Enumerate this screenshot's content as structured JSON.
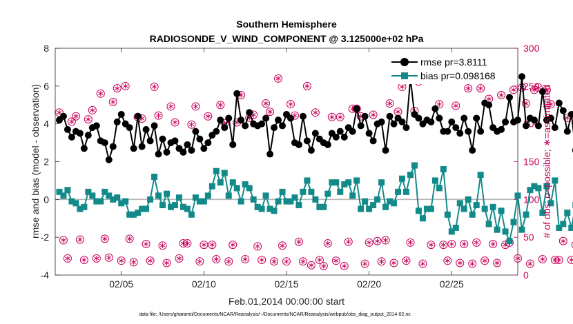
{
  "chart_data": {
    "type": "line",
    "title": "Southern Hemisphere",
    "subtitle": "RADIOSONDE_V_WIND_COMPONENT @ 3.125000e+02 hPa",
    "xlabel": "Feb.01,2014 00:00:00 start",
    "ylabel": "rmse and bias (model - observation)",
    "y2label": "# of obs: o=possible; ∗=assimilated",
    "xlim": [
      1,
      29
    ],
    "ylim": [
      -4,
      8
    ],
    "y2lim": [
      0,
      300
    ],
    "x_ticks": [
      5,
      10,
      15,
      20,
      25
    ],
    "x_tick_labels": [
      "02/05",
      "02/10",
      "02/15",
      "02/20",
      "02/25"
    ],
    "y_ticks": [
      -4,
      -2,
      0,
      2,
      4,
      6,
      8
    ],
    "y_tick_labels": [
      "-4",
      "-2",
      "0",
      "2",
      "4",
      "6",
      "8"
    ],
    "y2_ticks": [
      0,
      50,
      100,
      150,
      200,
      250,
      300
    ],
    "y2_tick_labels": [
      "0",
      "50",
      "100",
      "150",
      "200",
      "250",
      "300"
    ],
    "grid": false,
    "legend_position": "top-right",
    "zero_line": 0,
    "x_start": 1.25,
    "x_step": 0.25,
    "series": [
      {
        "name": "rmse pr=3.8111",
        "color": "#000000",
        "marker": "circle",
        "values": [
          4.2,
          4.4,
          3.7,
          3.3,
          3.6,
          3.5,
          2.7,
          3.4,
          3.8,
          3.9,
          3.1,
          3.0,
          2.1,
          2.8,
          4.1,
          4.5,
          4.0,
          3.8,
          2.7,
          4.4,
          2.8,
          3.7,
          3.1,
          3.9,
          2.4,
          3.2,
          2.5,
          3.0,
          3.1,
          2.7,
          2.5,
          2.9,
          2.6,
          3.6,
          3.2,
          2.7,
          3.0,
          3.4,
          3.6,
          4.2,
          3.8,
          4.3,
          2.9,
          5.6,
          4.2,
          3.9,
          4.6,
          4.0,
          3.9,
          4.0,
          4.3,
          2.4,
          3.8,
          4.2,
          3.9,
          4.5,
          4.3,
          3.0,
          2.9,
          4.4,
          3.1,
          2.6,
          3.5,
          3.2,
          3.0,
          2.9,
          3.5,
          3.3,
          3.6,
          3.3,
          3.8,
          3.6,
          4.8,
          3.9,
          4.4,
          3.5,
          3.1,
          4.0,
          4.1,
          2.6,
          4.4,
          4.0,
          4.3,
          4.1,
          3.8,
          6.4,
          4.5,
          4.3,
          4.0,
          4.2,
          4.1,
          4.8,
          4.3,
          3.6,
          3.6,
          4.1,
          3.8,
          3.5,
          4.3,
          3.6,
          2.6,
          4.3,
          3.6,
          5.1,
          5.0,
          3.8,
          3.6,
          3.7,
          4.1,
          5.4,
          4.1,
          4.2,
          6.5,
          3.9,
          4.3,
          4.2,
          3.9,
          5.7,
          4.2,
          4.3,
          3.8,
          5.1,
          4.7,
          3.6,
          4.5,
          2.6,
          3.7,
          5.2,
          5.9,
          4.3,
          3.5,
          4.1,
          3.0,
          4.4,
          3.1,
          3.5,
          4.5,
          3.6,
          5.1,
          3.9,
          4.1,
          3.6,
          4.5,
          3.6,
          3.4,
          3.9,
          2.5,
          3.7,
          4.1,
          3.9,
          4.3,
          5.6,
          3.6,
          4.2,
          3.4,
          4.4,
          3.7,
          3.9,
          5.6,
          3.8,
          3.6,
          4.1,
          4.6,
          2.2,
          4.4,
          4.2,
          3.5,
          4.1,
          4.3,
          3.5,
          4.1,
          4.8
        ],
        "pr": "3.8111"
      },
      {
        "name": "bias pr=0.098168",
        "color": "#138a8a",
        "marker": "square",
        "values": [
          0.4,
          0.2,
          0.5,
          -0.1,
          -0.2,
          -0.5,
          -0.4,
          0.4,
          0.2,
          -0.1,
          -0.1,
          0.4,
          0.2,
          0.0,
          0.1,
          -0.2,
          -0.1,
          -0.8,
          -0.8,
          -0.7,
          -0.5,
          -0.5,
          0.0,
          1.2,
          0.2,
          -0.3,
          0.3,
          -0.4,
          -0.3,
          0.1,
          -0.4,
          -0.5,
          -0.8,
          0.1,
          -0.1,
          -0.1,
          0.2,
          0.7,
          1.5,
          0.9,
          1.4,
          0.2,
          0.9,
          0.6,
          -0.1,
          0.8,
          0.6,
          0.0,
          -0.4,
          -0.5,
          0.2,
          -0.5,
          -0.6,
          -0.1,
          0.4,
          -0.1,
          -0.1,
          0.1,
          -0.3,
          0.4,
          1.0,
          0.4,
          0.0,
          -0.4,
          -0.4,
          0.3,
          0.9,
          0.9,
          0.4,
          0.8,
          0.9,
          0.2,
          1.0,
          -0.5,
          -0.1,
          -0.5,
          -0.3,
          0.0,
          0.9,
          -0.4,
          -0.1,
          -0.2,
          0.4,
          1.1,
          0.4,
          1.3,
          1.8,
          -0.6,
          -1.0,
          -0.5,
          -0.5,
          1.0,
          0.6,
          1.6,
          -0.8,
          -1.7,
          -1.5,
          -0.2,
          -0.5,
          0.0,
          -0.8,
          -0.3,
          1.3,
          -0.5,
          -1.3,
          -0.4,
          -1.6,
          -0.6,
          -1.7,
          -2.2,
          -1.2,
          0.2,
          -1.6,
          -0.8,
          0.5,
          0.7,
          0.6,
          -0.7,
          0.7,
          -0.2,
          1.0,
          -1.5,
          -1.3,
          -0.7,
          -1.5,
          -0.3,
          2.5,
          -0.5,
          -0.2,
          -0.3,
          0.5,
          1.2,
          0.0,
          -0.6,
          -0.4,
          -1.2,
          0.4,
          0.0,
          -0.4,
          -0.3,
          -0.3,
          0.8,
          1.2,
          -1.9,
          -1.3,
          0.4,
          -0.4,
          0.3,
          -1.6,
          -0.5,
          -0.3,
          0.2,
          -0.6,
          -1.0,
          -0.6,
          0.5,
          0.4,
          0.5,
          -0.5,
          -0.6,
          -0.1,
          1.3,
          0.3,
          -1.3,
          -0.6,
          -0.7,
          0.3,
          -0.3,
          0.9,
          0.5,
          -0.6,
          0.6,
          0.9,
          1.1,
          1.3,
          1.8
        ],
        "pr": "0.098168"
      }
    ],
    "obs_counts": {
      "axis": "right",
      "color": "#c8005a",
      "possible_marker": "circle",
      "assimilated_marker": "asterisk",
      "values": [
        215,
        46,
        22,
        203,
        210,
        47,
        20,
        206,
        218,
        22,
        240,
        48,
        23,
        229,
        247,
        19,
        250,
        48,
        17,
        209,
        207,
        41,
        19,
        249,
        211,
        39,
        16,
        223,
        202,
        22,
        42,
        42,
        199,
        223,
        18,
        40,
        210,
        40,
        21,
        225,
        201,
        18,
        40,
        202,
        238,
        21,
        208,
        212,
        38,
        20,
        227,
        216,
        18,
        260,
        39,
        18,
        226,
        211,
        44,
        18,
        250,
        13,
        215,
        20,
        12,
        42,
        209,
        19,
        209,
        12,
        44,
        220,
        220,
        210,
        15,
        43,
        212,
        45,
        18,
        46,
        227,
        16,
        216,
        249,
        19,
        43,
        217,
        256,
        15,
        267,
        40,
        272,
        226,
        40,
        19,
        41,
        224,
        16,
        41,
        247,
        15,
        43,
        247,
        19,
        233,
        41,
        16,
        238,
        40,
        43,
        245,
        22,
        248,
        227,
        15,
        245,
        248,
        21,
        245,
        226,
        20,
        20,
        45,
        208,
        20,
        40,
        21,
        40,
        43,
        211,
        21,
        40,
        22,
        14,
        45,
        220,
        21,
        41,
        222,
        17,
        40,
        209,
        16,
        212,
        42,
        210,
        23,
        225,
        18,
        42,
        188,
        187,
        42,
        21,
        210,
        192,
        42,
        18,
        221,
        213,
        41,
        19,
        225,
        208,
        41,
        42,
        198,
        19,
        42,
        199,
        16,
        42,
        22,
        42
      ],
      "possible_count": 5
    }
  },
  "footer": {
    "data_file": "data file: /Users/gharamti/Documents/NCAR/Reanalysis/~/Documents/NCAR/Reanalysis/webpub/obs_diag_output_2014-02.nc"
  }
}
